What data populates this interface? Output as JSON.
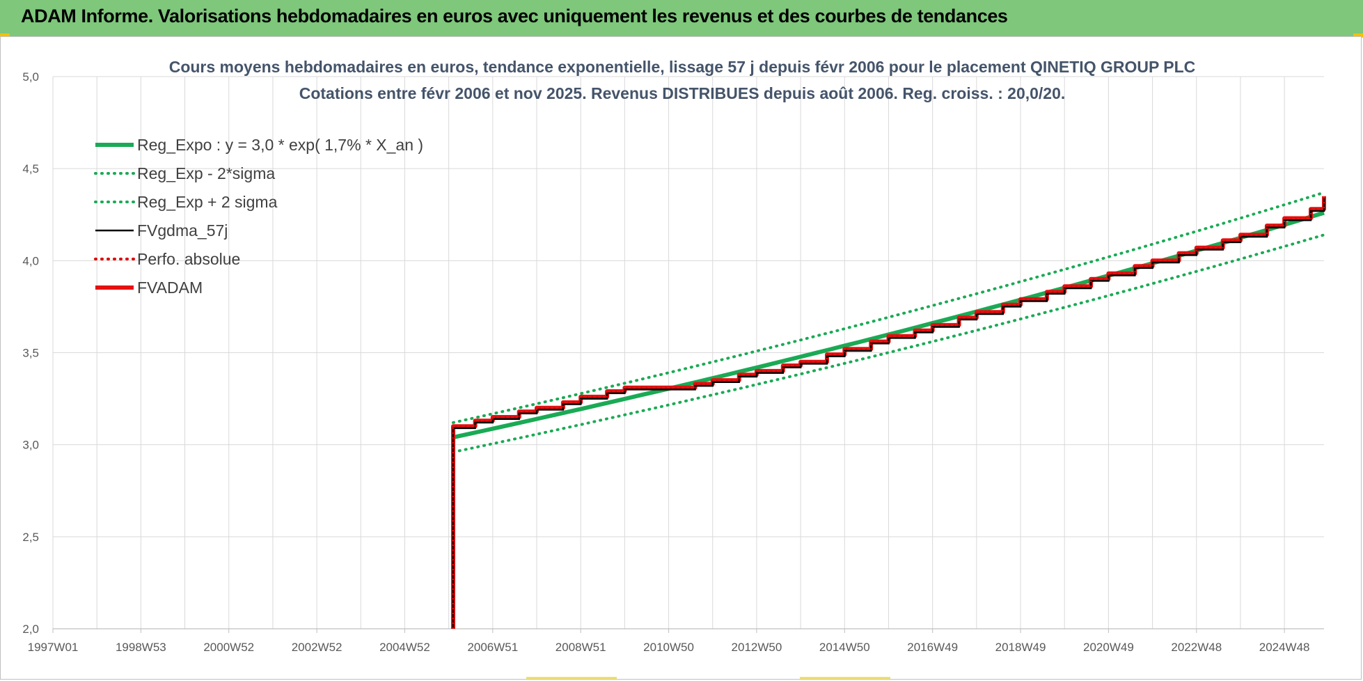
{
  "banner": {
    "title": "ADAM Informe. Valorisations hebdomadaires en euros avec uniquement les revenus et des courbes de tendances"
  },
  "chart_data": {
    "type": "line",
    "title_line1": "Cours moyens hebdomadaires en euros, tendance exponentielle, lissage 57 j depuis févr 2006 pour le placement QINETIQ GROUP PLC",
    "title_line2": "Cotations entre févr 2006 et nov 2025. Revenus DISTRIBUES depuis août 2006. Reg. croiss. : 20,0/20.",
    "ylim": [
      2.0,
      5.0
    ],
    "yticks": [
      "2,0",
      "2,5",
      "3,0",
      "3,5",
      "4,0",
      "4,5",
      "5,0"
    ],
    "xlim": [
      1997.0,
      2025.9
    ],
    "xticks": [
      {
        "label": "1997W01",
        "x": 1997.0
      },
      {
        "label": "1998W53",
        "x": 1999.0
      },
      {
        "label": "2000W52",
        "x": 2001.0
      },
      {
        "label": "2002W52",
        "x": 2003.0
      },
      {
        "label": "2004W52",
        "x": 2005.0
      },
      {
        "label": "2006W51",
        "x": 2007.0
      },
      {
        "label": "2008W51",
        "x": 2009.0
      },
      {
        "label": "2010W50",
        "x": 2011.0
      },
      {
        "label": "2012W50",
        "x": 2013.0
      },
      {
        "label": "2014W50",
        "x": 2015.0
      },
      {
        "label": "2016W49",
        "x": 2017.0
      },
      {
        "label": "2018W49",
        "x": 2019.0
      },
      {
        "label": "2020W49",
        "x": 2021.0
      },
      {
        "label": "2022W48",
        "x": 2023.0
      },
      {
        "label": "2024W48",
        "x": 2025.0
      }
    ],
    "grid": true,
    "legend_position": "top-left",
    "legend": [
      {
        "name": "Reg_Expo : y = 3,0 * exp( 1,7% *  X_an )",
        "color": "#1aaa55",
        "style": "solid-thick"
      },
      {
        "name": "Reg_Exp - 2*sigma",
        "color": "#1aaa55",
        "style": "dotted"
      },
      {
        "name": "Reg_Exp + 2 sigma",
        "color": "#1aaa55",
        "style": "dotted"
      },
      {
        "name": "FVgdma_57j",
        "color": "#000000",
        "style": "solid"
      },
      {
        "name": "Perfo. absolue",
        "color": "#e00000",
        "style": "dotted"
      },
      {
        "name": "FVADAM",
        "color": "#e61010",
        "style": "solid-thick"
      }
    ],
    "series": [
      {
        "name": "Reg_Expo : y = 3,0 * exp( 1,7% *  X_an )",
        "x": [
          2006.1,
          2025.9
        ],
        "y": [
          3.04,
          4.26
        ]
      },
      {
        "name": "Reg_Exp - 2*sigma",
        "x": [
          2006.1,
          2025.9
        ],
        "y": [
          2.96,
          4.14
        ]
      },
      {
        "name": "Reg_Exp + 2 sigma",
        "x": [
          2006.1,
          2025.9
        ],
        "y": [
          3.12,
          4.37
        ]
      },
      {
        "name": "FVADAM",
        "x": [
          2006.1,
          2006.1,
          2006.6,
          2007.0,
          2007.6,
          2008.0,
          2008.6,
          2009.0,
          2009.6,
          2010.0,
          2010.6,
          2011.0,
          2011.6,
          2012.0,
          2012.6,
          2013.0,
          2013.6,
          2014.0,
          2014.6,
          2015.0,
          2015.6,
          2016.0,
          2016.6,
          2017.0,
          2017.6,
          2018.0,
          2018.6,
          2019.0,
          2019.6,
          2020.0,
          2020.6,
          2021.0,
          2021.6,
          2022.0,
          2022.6,
          2023.0,
          2023.6,
          2024.0,
          2024.6,
          2025.0,
          2025.6,
          2025.9
        ],
        "y": [
          2.0,
          3.1,
          3.13,
          3.15,
          3.18,
          3.2,
          3.23,
          3.26,
          3.29,
          3.31,
          3.31,
          3.31,
          3.33,
          3.35,
          3.38,
          3.4,
          3.43,
          3.45,
          3.49,
          3.52,
          3.56,
          3.59,
          3.62,
          3.65,
          3.69,
          3.72,
          3.76,
          3.79,
          3.83,
          3.86,
          3.9,
          3.93,
          3.97,
          4.0,
          4.04,
          4.07,
          4.11,
          4.14,
          4.19,
          4.23,
          4.28,
          4.35
        ]
      },
      {
        "name": "FVgdma_57j",
        "x": [
          2006.1,
          2006.1,
          2006.6,
          2007.0,
          2007.6,
          2008.0,
          2008.6,
          2009.0,
          2009.6,
          2010.0,
          2010.6,
          2011.0,
          2011.6,
          2012.0,
          2012.6,
          2013.0,
          2013.6,
          2014.0,
          2014.6,
          2015.0,
          2015.6,
          2016.0,
          2016.6,
          2017.0,
          2017.6,
          2018.0,
          2018.6,
          2019.0,
          2019.6,
          2020.0,
          2020.6,
          2021.0,
          2021.6,
          2022.0,
          2022.6,
          2023.0,
          2023.6,
          2024.0,
          2024.6,
          2025.0,
          2025.6,
          2025.9
        ],
        "y": [
          2.0,
          3.09,
          3.12,
          3.14,
          3.17,
          3.19,
          3.22,
          3.25,
          3.28,
          3.3,
          3.3,
          3.3,
          3.32,
          3.34,
          3.37,
          3.39,
          3.42,
          3.44,
          3.48,
          3.51,
          3.55,
          3.58,
          3.61,
          3.64,
          3.68,
          3.71,
          3.75,
          3.78,
          3.82,
          3.85,
          3.89,
          3.92,
          3.96,
          3.99,
          4.03,
          4.06,
          4.1,
          4.13,
          4.18,
          4.22,
          4.27,
          4.34
        ]
      }
    ]
  }
}
